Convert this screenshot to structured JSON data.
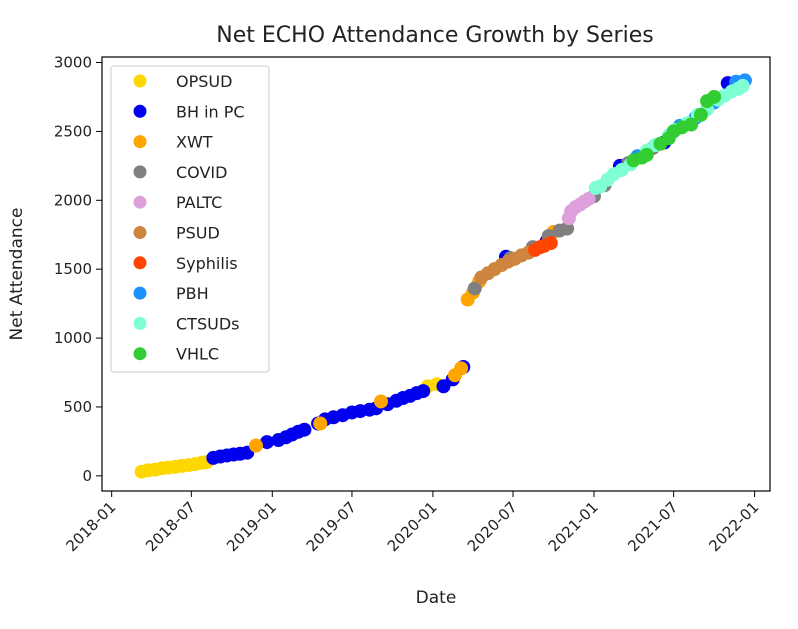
{
  "chart_data": {
    "type": "scatter",
    "title": "Net ECHO Attendance Growth by Series",
    "xlabel": "Date",
    "ylabel": "Net Attendance",
    "xlim": [
      "2017-12-10",
      "2022-02-05"
    ],
    "ylim": [
      -110,
      3040
    ],
    "x_ticks": [
      "2018-01",
      "2018-07",
      "2019-01",
      "2019-07",
      "2020-01",
      "2020-07",
      "2021-01",
      "2021-07",
      "2022-01"
    ],
    "y_ticks": [
      0,
      500,
      1000,
      1500,
      2000,
      2500,
      3000
    ],
    "grid": false,
    "legend_position": "top-left",
    "series": [
      {
        "name": "OPSUD",
        "color": "#FFD700",
        "points": [
          [
            "2018-03-10",
            30
          ],
          [
            "2018-03-25",
            40
          ],
          [
            "2018-04-10",
            45
          ],
          [
            "2018-04-25",
            55
          ],
          [
            "2018-05-10",
            60
          ],
          [
            "2018-05-25",
            65
          ],
          [
            "2018-06-10",
            72
          ],
          [
            "2018-06-25",
            78
          ],
          [
            "2018-07-10",
            85
          ],
          [
            "2018-07-25",
            95
          ],
          [
            "2018-08-05",
            100
          ],
          [
            "2019-12-20",
            650
          ],
          [
            "2020-01-10",
            665
          ]
        ]
      },
      {
        "name": "BH in PC",
        "color": "#0000EE",
        "points": [
          [
            "2018-08-20",
            130
          ],
          [
            "2018-09-05",
            140
          ],
          [
            "2018-09-20",
            148
          ],
          [
            "2018-10-05",
            155
          ],
          [
            "2018-10-20",
            160
          ],
          [
            "2018-11-05",
            168
          ],
          [
            "2018-12-20",
            245
          ],
          [
            "2019-01-15",
            260
          ],
          [
            "2019-02-01",
            280
          ],
          [
            "2019-02-15",
            300
          ],
          [
            "2019-03-01",
            320
          ],
          [
            "2019-03-15",
            335
          ],
          [
            "2019-04-15",
            380
          ],
          [
            "2019-05-01",
            410
          ],
          [
            "2019-05-20",
            425
          ],
          [
            "2019-06-10",
            440
          ],
          [
            "2019-07-01",
            460
          ],
          [
            "2019-07-20",
            470
          ],
          [
            "2019-08-10",
            480
          ],
          [
            "2019-08-25",
            490
          ],
          [
            "2019-09-20",
            520
          ],
          [
            "2019-10-10",
            545
          ],
          [
            "2019-10-25",
            565
          ],
          [
            "2019-11-10",
            580
          ],
          [
            "2019-11-25",
            600
          ],
          [
            "2019-12-10",
            615
          ],
          [
            "2020-01-25",
            650
          ],
          [
            "2020-02-15",
            700
          ],
          [
            "2020-03-10",
            790
          ],
          [
            "2020-06-15",
            1590
          ],
          [
            "2020-09-15",
            1700
          ],
          [
            "2021-03-01",
            2250
          ],
          [
            "2021-06-10",
            2420
          ],
          [
            "2021-11-01",
            2850
          ]
        ]
      },
      {
        "name": "XWT",
        "color": "#FFA500",
        "points": [
          [
            "2018-11-25",
            220
          ],
          [
            "2019-04-20",
            380
          ],
          [
            "2019-09-05",
            540
          ],
          [
            "2020-02-20",
            730
          ],
          [
            "2020-03-05",
            780
          ],
          [
            "2020-03-20",
            1280
          ],
          [
            "2020-04-01",
            1330
          ],
          [
            "2020-04-15",
            1410
          ],
          [
            "2020-10-01",
            1770
          ]
        ]
      },
      {
        "name": "COVID",
        "color": "#808080",
        "points": [
          [
            "2020-04-05",
            1360
          ],
          [
            "2020-06-25",
            1580
          ],
          [
            "2020-08-15",
            1660
          ],
          [
            "2020-09-20",
            1740
          ],
          [
            "2020-10-15",
            1780
          ],
          [
            "2020-11-01",
            1795
          ],
          [
            "2021-01-01",
            2030
          ],
          [
            "2021-01-25",
            2110
          ],
          [
            "2021-03-20",
            2270
          ],
          [
            "2021-05-15",
            2380
          ]
        ]
      },
      {
        "name": "PALTC",
        "color": "#DDA0DD",
        "points": [
          [
            "2020-11-05",
            1870
          ],
          [
            "2020-11-10",
            1920
          ],
          [
            "2020-11-20",
            1950
          ],
          [
            "2020-12-01",
            1970
          ],
          [
            "2020-12-10",
            1990
          ],
          [
            "2020-12-20",
            2010
          ]
        ]
      },
      {
        "name": "PSUD",
        "color": "#CD853F",
        "points": [
          [
            "2020-04-20",
            1440
          ],
          [
            "2020-05-05",
            1470
          ],
          [
            "2020-05-20",
            1500
          ],
          [
            "2020-06-05",
            1530
          ],
          [
            "2020-06-20",
            1555
          ],
          [
            "2020-07-05",
            1575
          ],
          [
            "2020-07-20",
            1600
          ],
          [
            "2020-08-05",
            1620
          ]
        ]
      },
      {
        "name": "Syphilis",
        "color": "#FF4500",
        "points": [
          [
            "2020-08-20",
            1640
          ],
          [
            "2020-09-01",
            1660
          ],
          [
            "2020-09-10",
            1670
          ],
          [
            "2020-09-25",
            1690
          ]
        ]
      },
      {
        "name": "PBH",
        "color": "#1E90FF",
        "points": [
          [
            "2021-04-10",
            2320
          ],
          [
            "2021-07-15",
            2540
          ],
          [
            "2021-08-20",
            2600
          ],
          [
            "2021-10-01",
            2710
          ],
          [
            "2021-11-20",
            2860
          ],
          [
            "2021-12-10",
            2870
          ]
        ]
      },
      {
        "name": "CTSUDs",
        "color": "#7FFFD4",
        "points": [
          [
            "2021-01-05",
            2090
          ],
          [
            "2021-01-15",
            2100
          ],
          [
            "2021-02-01",
            2150
          ],
          [
            "2021-02-15",
            2190
          ],
          [
            "2021-03-05",
            2220
          ],
          [
            "2021-03-25",
            2260
          ],
          [
            "2021-05-01",
            2360
          ],
          [
            "2021-05-20",
            2400
          ],
          [
            "2021-06-20",
            2470
          ],
          [
            "2021-07-05",
            2510
          ],
          [
            "2021-08-01",
            2560
          ],
          [
            "2021-08-25",
            2620
          ],
          [
            "2021-09-15",
            2660
          ],
          [
            "2021-10-10",
            2730
          ],
          [
            "2021-10-25",
            2760
          ],
          [
            "2021-11-10",
            2790
          ],
          [
            "2021-11-25",
            2810
          ],
          [
            "2021-12-05",
            2830
          ]
        ]
      },
      {
        "name": "VHLC",
        "color": "#32CD32",
        "points": [
          [
            "2021-04-01",
            2290
          ],
          [
            "2021-04-20",
            2310
          ],
          [
            "2021-05-01",
            2330
          ],
          [
            "2021-06-01",
            2410
          ],
          [
            "2021-06-20",
            2450
          ],
          [
            "2021-07-01",
            2500
          ],
          [
            "2021-07-20",
            2530
          ],
          [
            "2021-08-10",
            2550
          ],
          [
            "2021-09-01",
            2620
          ],
          [
            "2021-09-15",
            2720
          ],
          [
            "2021-10-01",
            2750
          ]
        ]
      }
    ]
  }
}
